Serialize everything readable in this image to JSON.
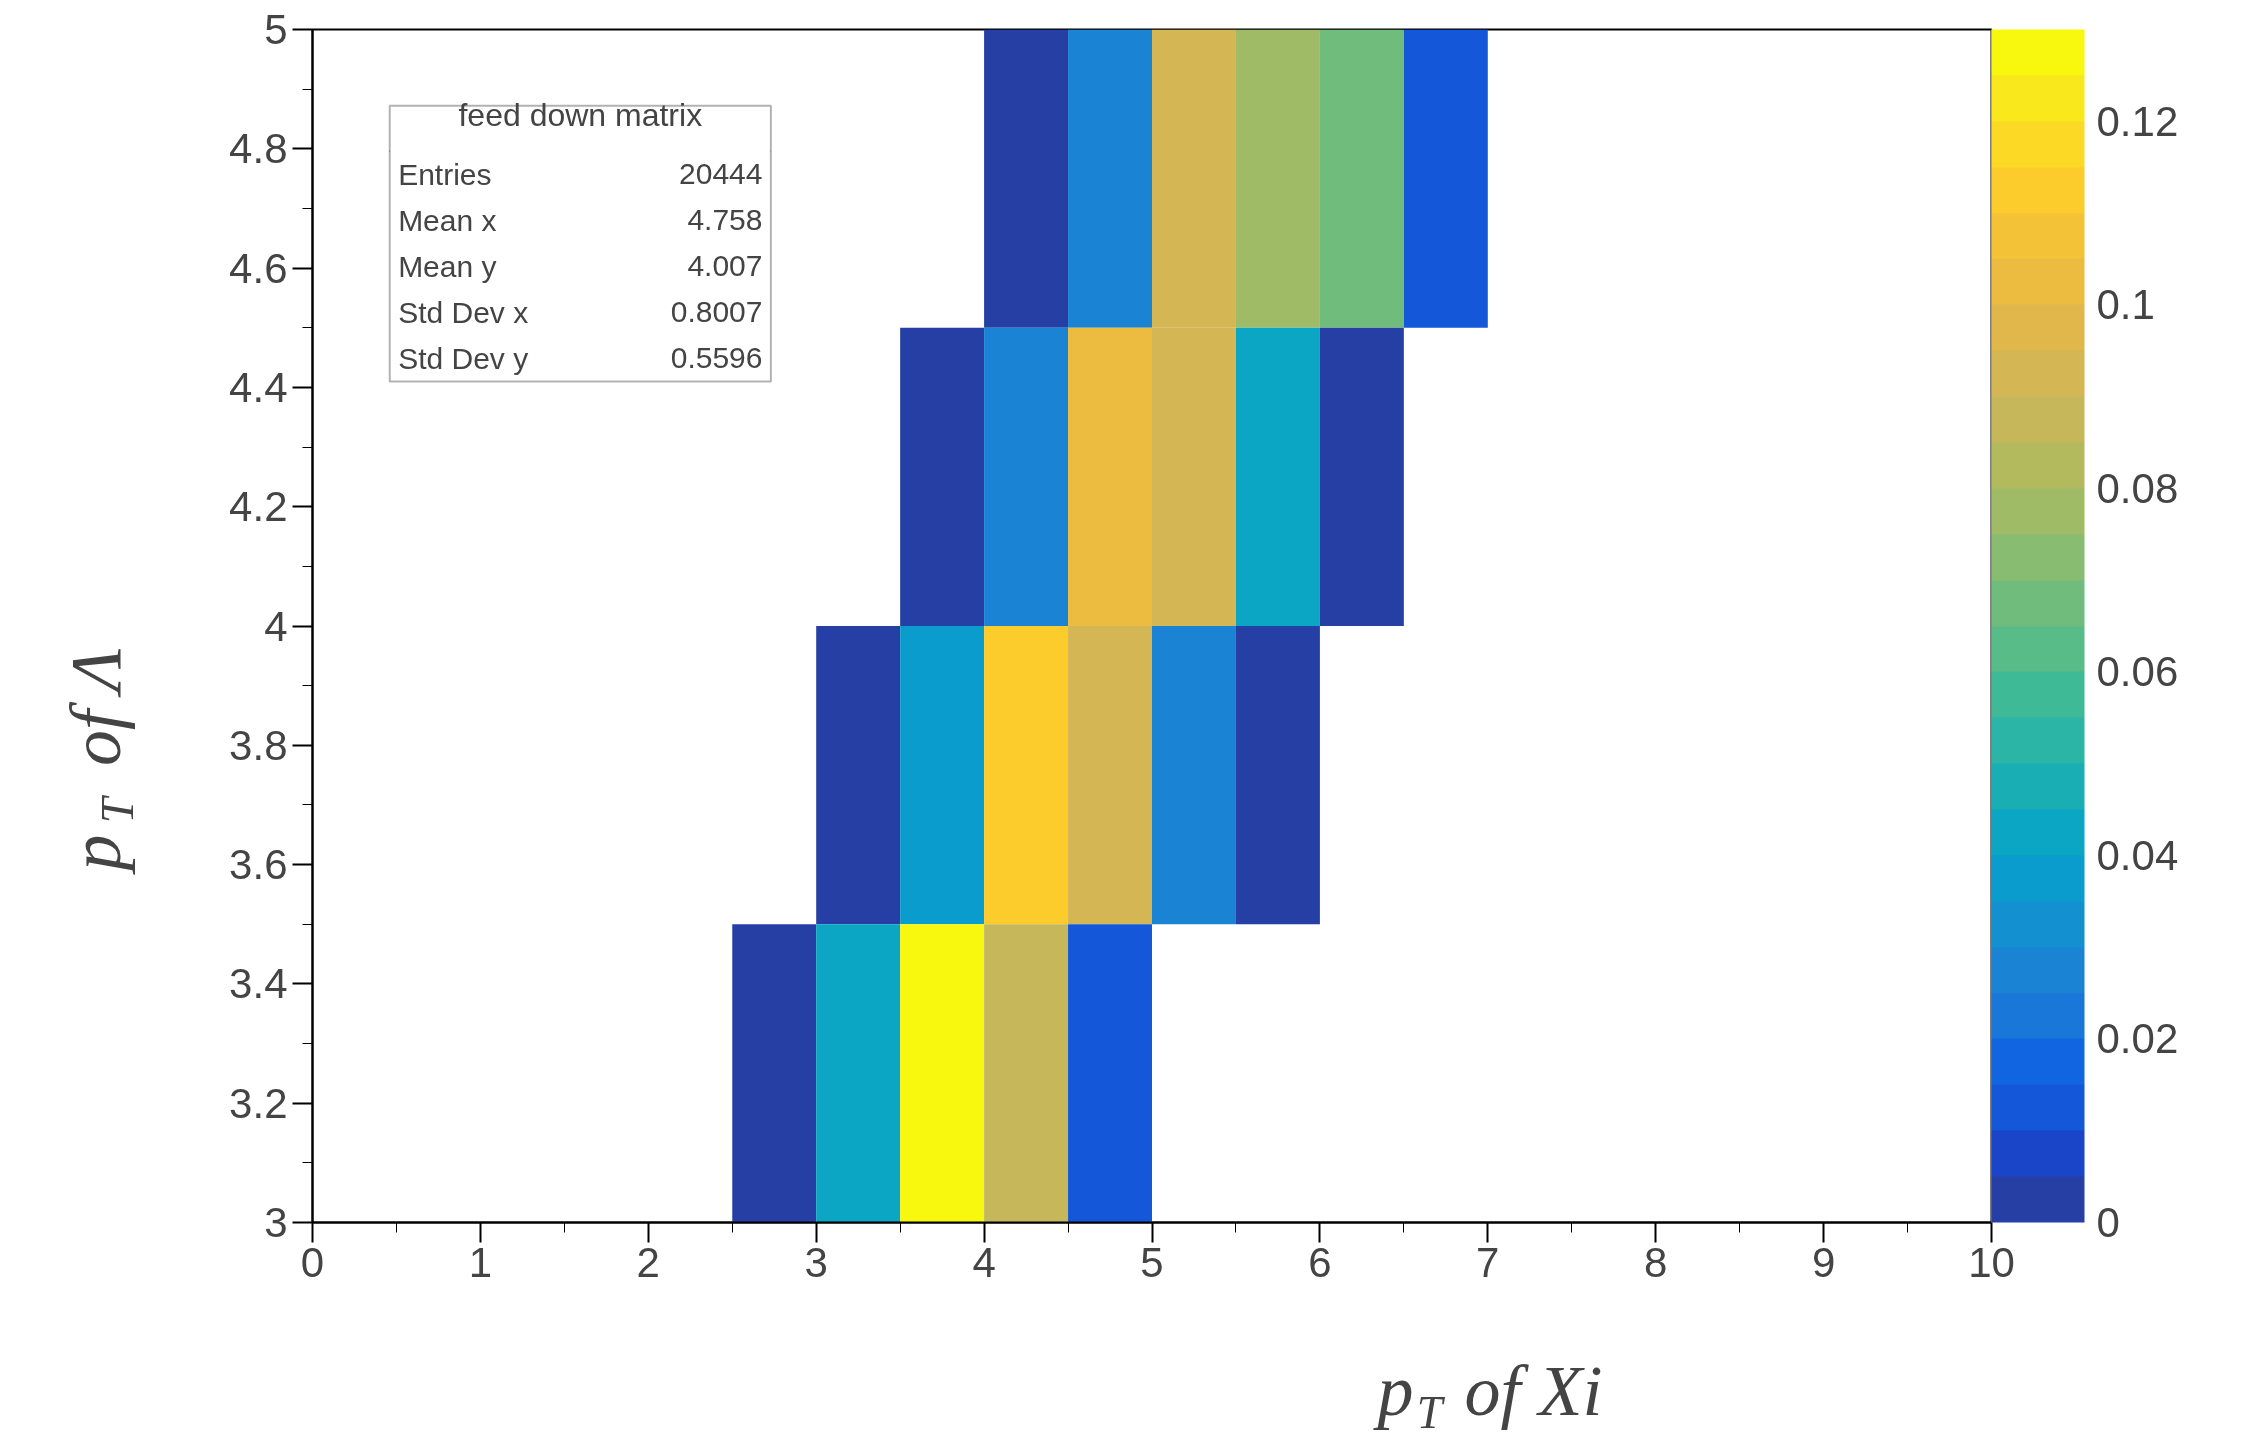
{
  "chart_data": {
    "type": "heatmap",
    "xlabel": "p$_{T}$ of Xi",
    "ylabel": "p$_{T}$ of Λ",
    "xlim": [
      0,
      10
    ],
    "xticks": [
      0,
      1,
      2,
      3,
      4,
      5,
      6,
      7,
      8,
      9,
      10
    ],
    "ylim": [
      3,
      5
    ],
    "yticks": [
      3,
      3.2,
      3.4,
      3.6,
      3.8,
      4,
      4.2,
      4.4,
      4.6,
      4.8,
      5
    ],
    "clim": [
      0,
      0.13
    ],
    "cticks": [
      0,
      0.02,
      0.04,
      0.06,
      0.08,
      0.1,
      0.12
    ],
    "cells": [
      [
        null,
        null,
        null,
        null,
        null,
        null,
        null,
        null,
        0.003,
        0.03,
        0.095,
        0.08,
        0.07,
        0.012,
        null,
        null,
        null,
        null,
        null,
        null
      ],
      [
        null,
        null,
        null,
        null,
        null,
        null,
        null,
        0.003,
        0.03,
        0.105,
        0.095,
        0.045,
        0.003,
        null,
        null,
        null,
        null,
        null,
        null,
        null
      ],
      [
        null,
        null,
        null,
        null,
        null,
        null,
        0.003,
        0.038,
        0.115,
        0.095,
        0.03,
        0.003,
        null,
        null,
        null,
        null,
        null,
        null,
        null,
        null
      ],
      [
        null,
        null,
        null,
        null,
        null,
        0.003,
        0.045,
        0.13,
        0.085,
        0.012,
        null,
        null,
        null,
        null,
        null,
        null,
        null,
        null,
        null,
        null
      ]
    ],
    "annotations": [
      "feed down matrix",
      "Entries 20444",
      "Mean x 4.758",
      "Mean y 4.007",
      "Std Dev x 0.8007",
      "Std Dev y 0.5596"
    ],
    "grid": false
  }
}
